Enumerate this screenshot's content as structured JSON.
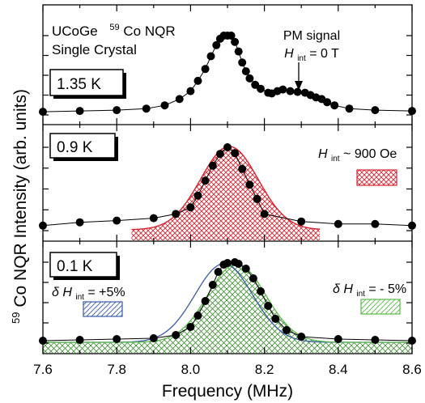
{
  "chart_data": {
    "type": "scatter",
    "xlabel": "Frequency (MHz)",
    "ylabel_sup": "59",
    "ylabel_rest": "Co NQR Intensity (arb. units)",
    "xlim": [
      7.6,
      8.6
    ],
    "xticks": [
      "7.6",
      "7.8",
      "8.0",
      "8.2",
      "8.4",
      "8.6"
    ],
    "sample_line1": "UCoGe",
    "sample_sup": "59",
    "sample_rest": "Co NQR",
    "sample_line2": "Single Crystal",
    "panels": [
      {
        "temperature": "1.35 K",
        "annotation_title": "PM signal",
        "annotation_h": "H",
        "annotation_sub": "int",
        "annotation_rest": " = 0 T",
        "points": [
          [
            7.6,
            0.04
          ],
          [
            7.7,
            0.05
          ],
          [
            7.8,
            0.06
          ],
          [
            7.88,
            0.08
          ],
          [
            7.93,
            0.12
          ],
          [
            7.97,
            0.2
          ],
          [
            8.0,
            0.3
          ],
          [
            8.02,
            0.43
          ],
          [
            8.04,
            0.58
          ],
          [
            8.055,
            0.74
          ],
          [
            8.07,
            0.88
          ],
          [
            8.08,
            0.96
          ],
          [
            8.09,
            1.0
          ],
          [
            8.1,
            1.0
          ],
          [
            8.11,
            1.0
          ],
          [
            8.12,
            0.92
          ],
          [
            8.13,
            0.8
          ],
          [
            8.14,
            0.66
          ],
          [
            8.15,
            0.55
          ],
          [
            8.16,
            0.46
          ],
          [
            8.175,
            0.38
          ],
          [
            8.19,
            0.33
          ],
          [
            8.21,
            0.28
          ],
          [
            8.22,
            0.27
          ],
          [
            8.235,
            0.3
          ],
          [
            8.25,
            0.32
          ],
          [
            8.27,
            0.3
          ],
          [
            8.29,
            0.29
          ],
          [
            8.31,
            0.28
          ],
          [
            8.325,
            0.25
          ],
          [
            8.34,
            0.22
          ],
          [
            8.355,
            0.2
          ],
          [
            8.37,
            0.16
          ],
          [
            8.39,
            0.12
          ],
          [
            8.43,
            0.08
          ],
          [
            8.5,
            0.06
          ],
          [
            8.6,
            0.05
          ]
        ]
      },
      {
        "temperature": "0.9 K",
        "legend_h": "H",
        "legend_sub": "int",
        "legend_rest": " ~ 900 Oe",
        "points": [
          [
            7.6,
            0.06
          ],
          [
            7.7,
            0.1
          ],
          [
            7.8,
            0.12
          ],
          [
            7.9,
            0.15
          ],
          [
            7.96,
            0.2
          ],
          [
            8.0,
            0.28
          ],
          [
            8.02,
            0.42
          ],
          [
            8.04,
            0.6
          ],
          [
            8.06,
            0.78
          ],
          [
            8.08,
            0.92
          ],
          [
            8.1,
            1.0
          ],
          [
            8.12,
            0.93
          ],
          [
            8.14,
            0.74
          ],
          [
            8.16,
            0.55
          ],
          [
            8.18,
            0.38
          ],
          [
            8.2,
            0.2
          ],
          [
            8.3,
            0.11
          ],
          [
            8.4,
            0.08
          ],
          [
            8.5,
            0.08
          ],
          [
            8.6,
            0.06
          ]
        ],
        "fit": {
          "center": 8.105,
          "width": 0.13,
          "amplitude": 1.0,
          "baseline": 0.01,
          "range": [
            7.84,
            8.35
          ],
          "color": "#d9232f"
        }
      },
      {
        "temperature": "0.1 K",
        "legend_left_delta": "δ",
        "legend_left_h": "H",
        "legend_left_sub": "int",
        "legend_left_rest": " = +5%",
        "legend_right_delta": "δ",
        "legend_right_h": "H",
        "legend_right_sub": "int",
        "legend_right_rest": " = - 5%",
        "points": [
          [
            7.6,
            0.03
          ],
          [
            7.7,
            0.04
          ],
          [
            7.8,
            0.05
          ],
          [
            7.9,
            0.06
          ],
          [
            7.96,
            0.1
          ],
          [
            8.0,
            0.2
          ],
          [
            8.02,
            0.34
          ],
          [
            8.04,
            0.52
          ],
          [
            8.06,
            0.72
          ],
          [
            8.075,
            0.88
          ],
          [
            8.09,
            0.97
          ],
          [
            8.1,
            0.99
          ],
          [
            8.12,
            1.0
          ],
          [
            8.13,
            0.98
          ],
          [
            8.15,
            0.92
          ],
          [
            8.17,
            0.8
          ],
          [
            8.19,
            0.64
          ],
          [
            8.21,
            0.46
          ],
          [
            8.23,
            0.3
          ],
          [
            8.26,
            0.16
          ],
          [
            8.3,
            0.08
          ],
          [
            8.4,
            0.05
          ],
          [
            8.5,
            0.04
          ],
          [
            8.6,
            0.03
          ]
        ],
        "fit_plus": {
          "center": 8.09,
          "width": 0.13,
          "amplitude": 0.97,
          "baseline": 0.01,
          "color": "#3a5aa8"
        },
        "fit_minus": {
          "center": 8.125,
          "width": 0.13,
          "amplitude": 0.97,
          "baseline": 0.01,
          "color": "#5ab84a"
        }
      }
    ]
  }
}
